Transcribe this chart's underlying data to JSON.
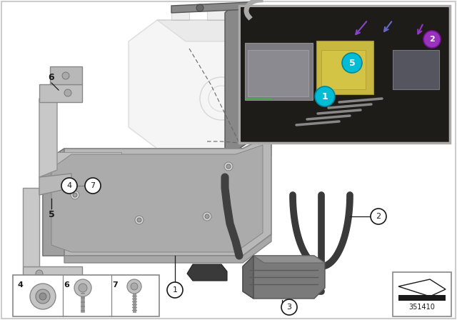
{
  "bg_color": "#ffffff",
  "part_number": "351410",
  "silver_light": "#c8c8c8",
  "silver_mid": "#b0b0b0",
  "silver_dark": "#909090",
  "silver_darker": "#707070",
  "black": "#1a1a1a",
  "dark_gray": "#555555",
  "tray_color": "#b5b5b5",
  "battery_face": "#e2e2e2",
  "battery_edge": "#aaaaaa",
  "bracket_color": "#909090",
  "clamp_color": "#c0c0c0",
  "cable_color": "#3a3a3a",
  "block_color": "#6a6a6a",
  "inset_bg": "#3d3d3d"
}
